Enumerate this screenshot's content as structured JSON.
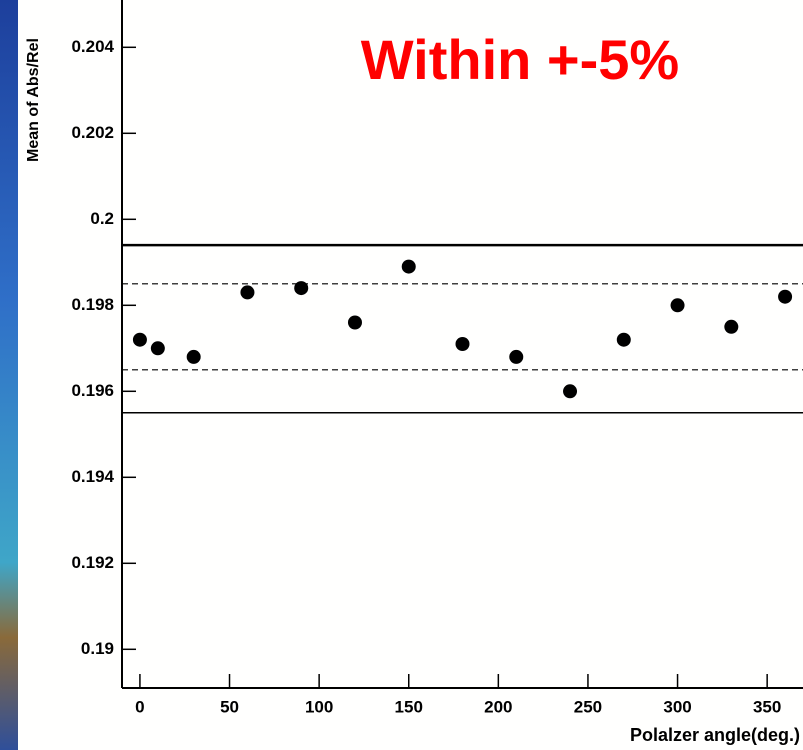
{
  "chart_data": {
    "type": "scatter",
    "annotation": "Within +-5%",
    "annotation_color": "#ff0000",
    "x_label": "Polalzer angle(deg.)",
    "y_label": "Mean of Abs/Rel",
    "x": [
      0,
      10,
      30,
      60,
      90,
      120,
      150,
      180,
      210,
      240,
      270,
      300,
      330,
      360
    ],
    "series": [
      {
        "color": "#000000",
        "values": [
          0.1972,
          0.197,
          0.1968,
          0.1983,
          0.1984,
          0.1976,
          0.1989,
          0.1971,
          0.1968,
          0.196,
          0.1972,
          0.198,
          0.1975,
          0.1982
        ]
      }
    ],
    "reference_lines": [
      {
        "value": 0.1994,
        "style": "thick"
      },
      {
        "value": 0.1985,
        "style": "dashed"
      },
      {
        "value": 0.1965,
        "style": "dashed"
      },
      {
        "value": 0.1955,
        "style": "solid"
      }
    ],
    "xlim": [
      -10,
      370
    ],
    "ylim": [
      0.1891,
      0.2051
    ],
    "xticks": [
      0,
      50,
      100,
      150,
      200,
      250,
      300,
      350
    ],
    "yticks": [
      0.19,
      0.192,
      0.194,
      0.196,
      0.198,
      0.2,
      0.202,
      0.204
    ],
    "grid": false
  }
}
